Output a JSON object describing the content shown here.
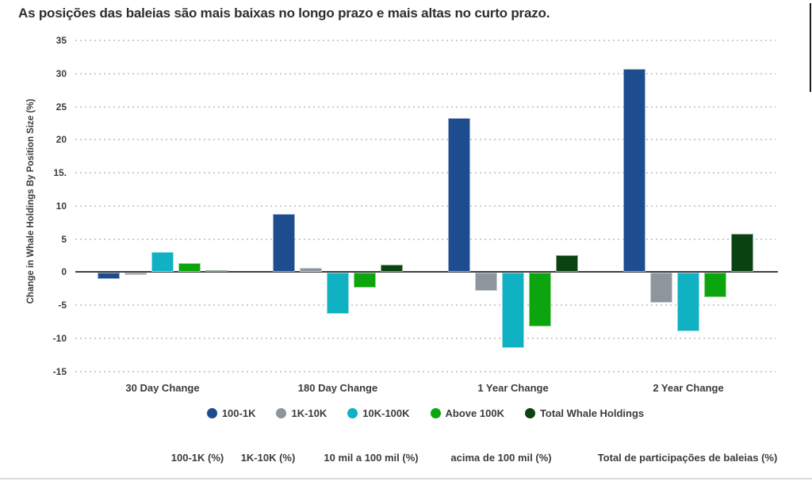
{
  "header": {
    "title": "As posições das baleias são mais baixas no longo prazo e mais altas no curto prazo."
  },
  "chart_data": {
    "type": "bar",
    "title": "As posições das baleias são mais baixas no longo prazo e mais altas no curto prazo.",
    "ylabel": "Change in Whale Holdings By Position Size (%)",
    "ylim": [
      -15,
      35
    ],
    "ytick_step": 5,
    "ytick_labels": [
      "35",
      "30",
      "25",
      "20",
      "15.",
      "10",
      "5",
      "0",
      "-5",
      "-10",
      "-15"
    ],
    "grid": "horizontal-dotted",
    "legend_position": "bottom-center",
    "categories": [
      "30 Day Change",
      "180 Day Change",
      "1 Year Change",
      "2 Year Change"
    ],
    "series": [
      {
        "name": "100-1K",
        "color": "#1d4c8f",
        "values": [
          -0.9,
          8.7,
          23.2,
          30.7
        ]
      },
      {
        "name": "1K-10K",
        "color": "#8d959d",
        "values": [
          -0.3,
          0.6,
          -2.8,
          -4.5
        ]
      },
      {
        "name": "10K-100K",
        "color": "#0fb1c3",
        "values": [
          3.0,
          -6.2,
          -11.4,
          -8.9
        ]
      },
      {
        "name": "Above 100K",
        "color": "#0da50d",
        "values": [
          1.3,
          -2.3,
          -8.1,
          -3.7
        ]
      },
      {
        "name": "Total Whale Holdings",
        "color": "#0a4211",
        "values": [
          0.2,
          1.1,
          2.5,
          5.7
        ]
      }
    ]
  },
  "footer": {
    "labels": [
      "100-1K (%)",
      "1K-10K (%)",
      "10 mil a 100 mil (%)",
      "acima de 100 mil (%)",
      "Total de participações de baleias (%)"
    ]
  }
}
